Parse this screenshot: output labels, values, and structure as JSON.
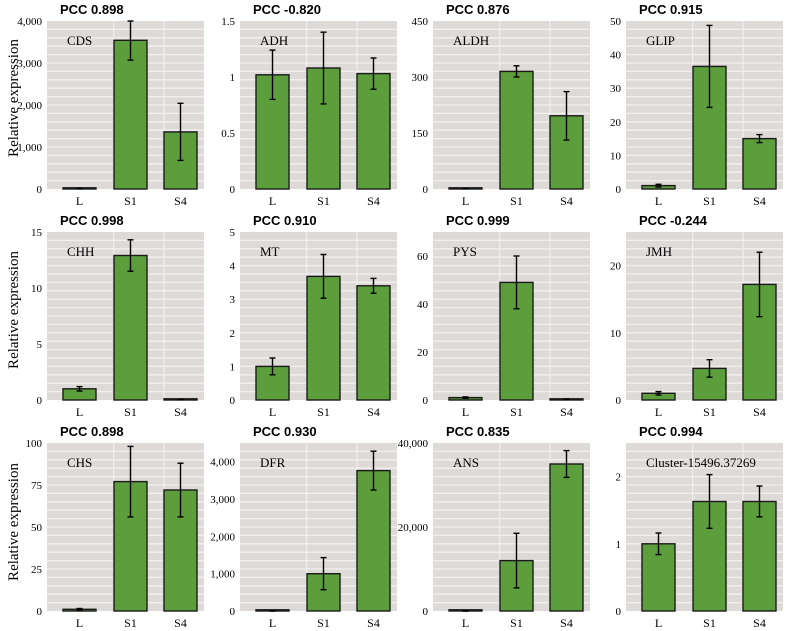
{
  "figure": {
    "ylabel": "Relative expression",
    "colors": {
      "bar": "#5c9e3c",
      "bar_edge": "#1a1a1a",
      "plot_bg": "#dedad8",
      "grid": "#f2f0ef",
      "error": "#000000"
    }
  },
  "chart_data": [
    {
      "type": "bar",
      "pcc": "PCC 0.898",
      "gene": "CDS",
      "categories": [
        "L",
        "S1",
        "S4"
      ],
      "values": [
        10,
        3540,
        1360
      ],
      "errors": [
        5,
        470,
        680
      ],
      "ylim": [
        0,
        4000
      ],
      "yticks": [
        0,
        1000,
        2000,
        3000,
        4000
      ],
      "ytick_labels": [
        "0",
        "1,000",
        "2,000",
        "3,000",
        "4,000"
      ]
    },
    {
      "type": "bar",
      "pcc": "PCC -0.820",
      "gene": "ADH",
      "categories": [
        "L",
        "S1",
        "S4"
      ],
      "values": [
        1.02,
        1.08,
        1.03
      ],
      "errors": [
        0.22,
        0.32,
        0.14
      ],
      "ylim": [
        0,
        1.5
      ],
      "yticks": [
        0,
        0.5,
        1,
        1.5
      ],
      "ytick_labels": [
        "0",
        "0.5",
        "1",
        "1.5"
      ]
    },
    {
      "type": "bar",
      "pcc": "PCC 0.876",
      "gene": "ALDH",
      "categories": [
        "L",
        "S1",
        "S4"
      ],
      "values": [
        1,
        315,
        196
      ],
      "errors": [
        0.5,
        15,
        65
      ],
      "ylim": [
        0,
        450
      ],
      "yticks": [
        0,
        150,
        300,
        450
      ],
      "ytick_labels": [
        "0",
        "150",
        "300",
        "450"
      ]
    },
    {
      "type": "bar",
      "pcc": "PCC 0.915",
      "gene": "GLIP",
      "categories": [
        "L",
        "S1",
        "S4"
      ],
      "values": [
        1,
        36.5,
        15
      ],
      "errors": [
        0.4,
        12.2,
        1.2
      ],
      "ylim": [
        0,
        50
      ],
      "yticks": [
        0,
        10,
        20,
        30,
        40,
        50
      ],
      "ytick_labels": [
        "0",
        "10",
        "20",
        "30",
        "40",
        "50"
      ]
    },
    {
      "type": "bar",
      "pcc": "PCC 0.998",
      "gene": "CHH",
      "categories": [
        "L",
        "S1",
        "S4"
      ],
      "values": [
        1,
        12.9,
        0.05
      ],
      "errors": [
        0.2,
        1.4,
        0.02
      ],
      "ylim": [
        0,
        15
      ],
      "yticks": [
        0,
        5,
        10,
        15
      ],
      "ytick_labels": [
        "0",
        "5",
        "10",
        "15"
      ]
    },
    {
      "type": "bar",
      "pcc": "PCC 0.910",
      "gene": "MT",
      "categories": [
        "L",
        "S1",
        "S4"
      ],
      "values": [
        1,
        3.68,
        3.4
      ],
      "errors": [
        0.25,
        0.65,
        0.22
      ],
      "ylim": [
        0,
        5
      ],
      "yticks": [
        0,
        1,
        2,
        3,
        4,
        5
      ],
      "ytick_labels": [
        "0",
        "1",
        "2",
        "3",
        "4",
        "5"
      ]
    },
    {
      "type": "bar",
      "pcc": "PCC 0.999",
      "gene": "PYS",
      "categories": [
        "L",
        "S1",
        "S4"
      ],
      "values": [
        1,
        49,
        0.3
      ],
      "errors": [
        0.3,
        11,
        0.1
      ],
      "ylim": [
        0,
        70
      ],
      "yticks": [
        0,
        20,
        40,
        60
      ],
      "ytick_labels": [
        "0",
        "20",
        "40",
        "60"
      ]
    },
    {
      "type": "bar",
      "pcc": "PCC -0.244",
      "gene": "JMH",
      "categories": [
        "L",
        "S1",
        "S4"
      ],
      "values": [
        1,
        4.7,
        17.2
      ],
      "errors": [
        0.25,
        1.3,
        4.8
      ],
      "ylim": [
        0,
        25
      ],
      "yticks": [
        0,
        10,
        20
      ],
      "ytick_labels": [
        "0",
        "10",
        "20"
      ]
    },
    {
      "type": "bar",
      "pcc": "PCC 0.898",
      "gene": "CHS",
      "categories": [
        "L",
        "S1",
        "S4"
      ],
      "values": [
        1,
        77,
        72
      ],
      "errors": [
        0.5,
        21,
        16
      ],
      "ylim": [
        0,
        100
      ],
      "yticks": [
        0,
        25,
        50,
        75,
        100
      ],
      "ytick_labels": [
        "0",
        "25",
        "50",
        "75",
        "100"
      ]
    },
    {
      "type": "bar",
      "pcc": "PCC 0.930",
      "gene": "DFR",
      "categories": [
        "L",
        "S1",
        "S4"
      ],
      "values": [
        1,
        1000,
        3760
      ],
      "errors": [
        0.5,
        430,
        520
      ],
      "ylim": [
        0,
        4500
      ],
      "yticks": [
        0,
        1000,
        2000,
        3000,
        4000
      ],
      "ytick_labels": [
        "0",
        "1,000",
        "2,000",
        "3,000",
        "4,000"
      ]
    },
    {
      "type": "bar",
      "pcc": "PCC 0.835",
      "gene": "ANS",
      "categories": [
        "L",
        "S1",
        "S4"
      ],
      "values": [
        1,
        12000,
        35000
      ],
      "errors": [
        0.5,
        6500,
        3200
      ],
      "ylim": [
        0,
        40000
      ],
      "yticks": [
        0,
        20000,
        40000
      ],
      "ytick_labels": [
        "0",
        "20,000",
        "40,000"
      ]
    },
    {
      "type": "bar",
      "pcc": "PCC 0.994",
      "gene": "Cluster-15496.37269",
      "categories": [
        "L",
        "S1",
        "S4"
      ],
      "values": [
        1,
        1.63,
        1.63
      ],
      "errors": [
        0.16,
        0.4,
        0.23
      ],
      "ylim": [
        0,
        2.5
      ],
      "yticks": [
        0,
        1,
        2
      ],
      "ytick_labels": [
        "0",
        "1",
        "2"
      ]
    }
  ]
}
